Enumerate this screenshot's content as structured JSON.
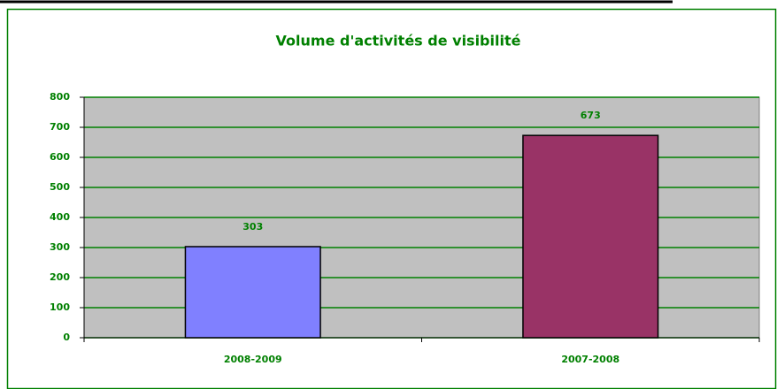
{
  "chart_data": {
    "type": "bar",
    "title": "Volume d'activités de visibilité",
    "categories": [
      "2008-2009",
      "2007-2008"
    ],
    "values": [
      303,
      673
    ],
    "colors": [
      "#8080ff",
      "#993366"
    ],
    "ylim": [
      0,
      800
    ],
    "yticks": [
      0,
      100,
      200,
      300,
      400,
      500,
      600,
      700,
      800
    ],
    "grid": true
  }
}
